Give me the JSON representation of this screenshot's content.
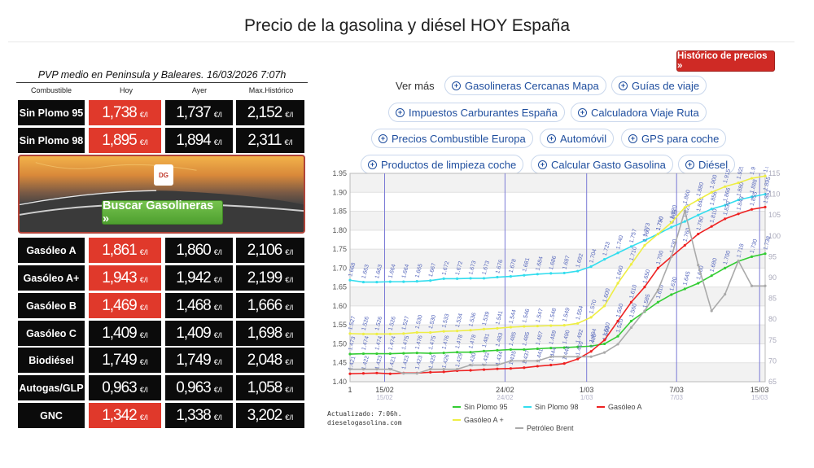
{
  "page": {
    "title": "Precio de la gasolina y diésel HOY España"
  },
  "table": {
    "pvp": "PVP medio en Peninsula y Baleares. 16/03/2026 7:07h",
    "headers": {
      "combustible": "Combustible",
      "hoy": "Hoy",
      "ayer": "Ayer",
      "max": "Max.Histórico"
    },
    "unit": "€/l",
    "rows": [
      {
        "name": "Sin Plomo 95",
        "hoy": "1,738",
        "ayer": "1,737",
        "max": "2,152",
        "hoy_up": true
      },
      {
        "name": "Sin Plomo 98",
        "hoy": "1,895",
        "ayer": "1,894",
        "max": "2,311",
        "hoy_up": true
      },
      {
        "name": "Gasóleo A",
        "hoy": "1,861",
        "ayer": "1,860",
        "max": "2,106",
        "hoy_up": true
      },
      {
        "name": "Gasóleo A+",
        "hoy": "1,943",
        "ayer": "1,942",
        "max": "2,199",
        "hoy_up": true
      },
      {
        "name": "Gasóleo B",
        "hoy": "1,469",
        "ayer": "1,468",
        "max": "1,666",
        "hoy_up": true
      },
      {
        "name": "Gasóleo C",
        "hoy": "1,409",
        "ayer": "1,409",
        "max": "1,698",
        "hoy_up": false
      },
      {
        "name": "Biodiésel",
        "hoy": "1,749",
        "ayer": "1,749",
        "max": "2,048",
        "hoy_up": false
      },
      {
        "name": "Autogas/GLP",
        "hoy": "0,963",
        "ayer": "0,963",
        "max": "1,058",
        "hoy_up": false
      },
      {
        "name": "GNC",
        "hoy": "1,342",
        "ayer": "1,338",
        "max": "3,202",
        "hoy_up": true
      }
    ],
    "up_color": "#e0392b"
  },
  "banner": {
    "button": "Buscar Gasolineras »",
    "logo": "DG"
  },
  "historico_button": "Histórico de precios »",
  "ver_mas": "Ver más",
  "links": [
    "Gasolineras Cercanas Mapa",
    "Guías de viaje",
    "Impuestos Carburantes España",
    "Calculadora Viaje Ruta",
    "Precios Combustible Europa",
    "Automóvil",
    "GPS para coche",
    "Productos de limpieza coche",
    "Calcular Gasto Gasolina",
    "Diésel"
  ],
  "actualizado": [
    "Actualizado: 7:06h.",
    "dieselogasolina.com"
  ],
  "chart_data": {
    "type": "line",
    "ylim": [
      1.4,
      1.95
    ],
    "yticks": [
      "1.95",
      "1.90",
      "1.85",
      "1.80",
      "1.75",
      "1.70",
      "1.65",
      "1.60",
      "1.55",
      "1.50",
      "1.45",
      "1.40"
    ],
    "y2lim": [
      65,
      115
    ],
    "y2ticks": [
      "115",
      "110",
      "105",
      "100",
      "95",
      "90",
      "85",
      "80",
      "75",
      "70",
      "65"
    ],
    "xlim": [
      1,
      31
    ],
    "xticks": [
      {
        "x": 1,
        "label": "1"
      },
      {
        "x": 3.5,
        "label": "15/02"
      },
      {
        "x": 12.2,
        "label": "24/02"
      },
      {
        "x": 18.1,
        "label": "1/03"
      },
      {
        "x": 24.6,
        "label": "7/03"
      },
      {
        "x": 30.6,
        "label": "15/03"
      }
    ],
    "xticks_secondary": [
      {
        "x": 3.5,
        "label": "15/02"
      },
      {
        "x": 12.2,
        "label": "24/02"
      },
      {
        "x": 18.1,
        "label": "1/03"
      },
      {
        "x": 24.6,
        "label": "7/03"
      },
      {
        "x": 30.6,
        "label": "15/03"
      }
    ],
    "vlines": [
      3.5,
      12.2,
      18.1,
      24.6,
      30.6
    ],
    "series": [
      {
        "name": "Sin Plomo 95",
        "color": "#33cc33",
        "axis": "left",
        "values": [
          1.473,
          1.474,
          1.474,
          1.474,
          1.475,
          1.476,
          1.475,
          1.476,
          1.478,
          1.478,
          1.481,
          1.483,
          1.485,
          1.485,
          1.487,
          1.489,
          1.49,
          1.492,
          1.494,
          1.5,
          1.52,
          1.56,
          1.585,
          1.61,
          1.63,
          1.645,
          1.66,
          1.68,
          1.7,
          1.718,
          1.73,
          1.738
        ]
      },
      {
        "name": "Sin Plomo 98",
        "color": "#33ddee",
        "axis": "left",
        "values": [
          1.668,
          1.663,
          1.663,
          1.664,
          1.664,
          1.665,
          1.667,
          1.672,
          1.672,
          1.673,
          1.673,
          1.676,
          1.678,
          1.681,
          1.684,
          1.686,
          1.687,
          1.692,
          1.704,
          1.723,
          1.74,
          1.757,
          1.773,
          1.79,
          1.808,
          1.823,
          1.84,
          1.856,
          1.866,
          1.88,
          1.888,
          1.895
        ]
      },
      {
        "name": "Gasóleo A",
        "color": "#ee2222",
        "axis": "left",
        "values": [
          1.421,
          1.422,
          1.423,
          1.421,
          1.423,
          1.423,
          1.425,
          1.426,
          1.429,
          1.43,
          1.432,
          1.434,
          1.435,
          1.437,
          1.441,
          1.444,
          1.448,
          1.46,
          1.48,
          1.51,
          1.56,
          1.61,
          1.65,
          1.7,
          1.73,
          1.76,
          1.79,
          1.81,
          1.83,
          1.843,
          1.855,
          1.861
        ]
      },
      {
        "name": "Gasóleo A +",
        "color": "#eeee44",
        "axis": "left",
        "values": [
          1.527,
          1.526,
          1.526,
          1.526,
          1.527,
          1.53,
          1.53,
          1.533,
          1.534,
          1.536,
          1.539,
          1.541,
          1.544,
          1.546,
          1.547,
          1.548,
          1.549,
          1.554,
          1.57,
          1.6,
          1.66,
          1.71,
          1.76,
          1.79,
          1.82,
          1.86,
          1.88,
          1.9,
          1.915,
          1.925,
          1.937,
          1.943
        ]
      },
      {
        "name": "Petróleo Brent",
        "color": "#aaaaaa",
        "axis": "right",
        "values": [
          68,
          68,
          68,
          68,
          67,
          67,
          68,
          68,
          68,
          69,
          69,
          69,
          70,
          70,
          70,
          71,
          71,
          71,
          71,
          72,
          74,
          78,
          82,
          87,
          95,
          106,
          93,
          82,
          86,
          94,
          88,
          88
        ]
      }
    ]
  }
}
